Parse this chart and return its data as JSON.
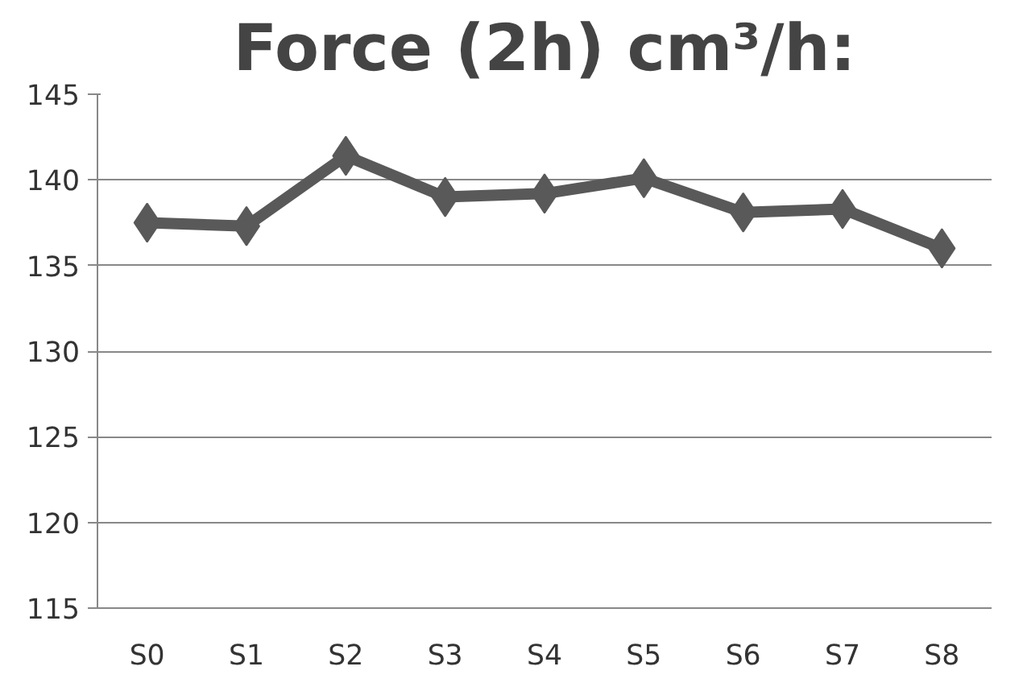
{
  "chart_data": {
    "type": "line",
    "title": "Force (2h) cm³/h:",
    "categories": [
      "S0",
      "S1",
      "S2",
      "S3",
      "S4",
      "S5",
      "S6",
      "S7",
      "S8"
    ],
    "series": [
      {
        "color": "#595959",
        "values": [
          137.5,
          137.3,
          141.4,
          139.0,
          139.2,
          140.1,
          138.1,
          138.3,
          136.0
        ]
      }
    ],
    "ylim": [
      115,
      145
    ],
    "yticks": [
      115,
      120,
      125,
      130,
      135,
      140,
      145
    ],
    "grid": "y",
    "marker": "diamond",
    "line_style": "solid"
  }
}
